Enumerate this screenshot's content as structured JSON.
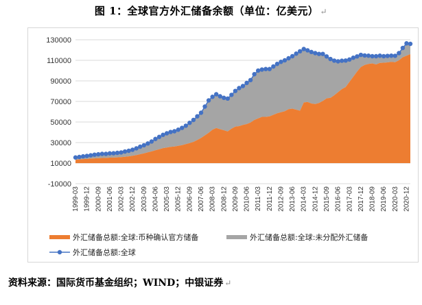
{
  "title": "图 1：全球官方外汇储备余额（单位：亿美元）",
  "source": "资料来源：国际货币基金组织；WIND；中银证券",
  "colors": {
    "allocated": "#ED7D31",
    "unallocated": "#A5A5A5",
    "total_line": "#4472C4",
    "grid": "#d9d9d9"
  },
  "chart_data": {
    "type": "area",
    "xlabel": "",
    "ylabel": "",
    "ylim": [
      -10000,
      130000
    ],
    "yticks": [
      -10000,
      10000,
      30000,
      50000,
      70000,
      90000,
      110000,
      130000
    ],
    "x_tick_labels": [
      "1999-03",
      "1999-12",
      "2000-09",
      "2001-06",
      "2002-03",
      "2002-12",
      "2003-09",
      "2004-06",
      "2005-03",
      "2005-12",
      "2006-09",
      "2007-06",
      "2008-03",
      "2008-12",
      "2009-09",
      "2010-06",
      "2011-03",
      "2011-12",
      "2012-09",
      "2013-06",
      "2014-03",
      "2014-12",
      "2015-09",
      "2016-06",
      "2017-03",
      "2017-12",
      "2018-09",
      "2019-06",
      "2020-03",
      "2020-12"
    ],
    "legend_position": "bottom",
    "x": [
      "1999-03",
      "1999-06",
      "1999-09",
      "1999-12",
      "2000-03",
      "2000-06",
      "2000-09",
      "2000-12",
      "2001-03",
      "2001-06",
      "2001-09",
      "2001-12",
      "2002-03",
      "2002-06",
      "2002-09",
      "2002-12",
      "2003-03",
      "2003-06",
      "2003-09",
      "2003-12",
      "2004-03",
      "2004-06",
      "2004-09",
      "2004-12",
      "2005-03",
      "2005-06",
      "2005-09",
      "2005-12",
      "2006-03",
      "2006-06",
      "2006-09",
      "2006-12",
      "2007-03",
      "2007-06",
      "2007-09",
      "2007-12",
      "2008-03",
      "2008-06",
      "2008-09",
      "2008-12",
      "2009-03",
      "2009-06",
      "2009-09",
      "2009-12",
      "2010-03",
      "2010-06",
      "2010-09",
      "2010-12",
      "2011-03",
      "2011-06",
      "2011-09",
      "2011-12",
      "2012-03",
      "2012-06",
      "2012-09",
      "2012-12",
      "2013-03",
      "2013-06",
      "2013-09",
      "2013-12",
      "2014-03",
      "2014-06",
      "2014-09",
      "2014-12",
      "2015-03",
      "2015-06",
      "2015-09",
      "2015-12",
      "2016-03",
      "2016-06",
      "2016-09",
      "2016-12",
      "2017-03",
      "2017-06",
      "2017-09",
      "2017-12",
      "2018-03",
      "2018-06",
      "2018-09",
      "2018-12",
      "2019-03",
      "2019-06",
      "2019-09",
      "2019-12",
      "2020-03",
      "2020-06",
      "2020-09",
      "2020-12",
      "2021-03"
    ],
    "series": [
      {
        "name": "外汇储备总额:全球:币种确认官方储备",
        "kind": "area",
        "values": [
          13200,
          13600,
          13900,
          14100,
          14400,
          14600,
          14800,
          15000,
          15100,
          15300,
          15400,
          15600,
          15800,
          16200,
          16600,
          17200,
          17800,
          18700,
          19500,
          20500,
          21400,
          22500,
          23500,
          24600,
          25200,
          25800,
          26200,
          26800,
          27500,
          28500,
          29500,
          30700,
          32500,
          34500,
          37000,
          39500,
          42500,
          44200,
          43000,
          42000,
          40800,
          43500,
          45500,
          46000,
          47200,
          48000,
          49500,
          52000,
          53500,
          55000,
          55000,
          55500,
          57000,
          58500,
          59500,
          60500,
          62500,
          63000,
          62000,
          61000,
          69000,
          69500,
          68000,
          67500,
          68500,
          70500,
          73000,
          73500,
          76000,
          79000,
          82000,
          84000,
          89000,
          94000,
          99000,
          103500,
          105500,
          106500,
          107000,
          106000,
          107500,
          107700,
          108000,
          108500,
          108200,
          110000,
          113000,
          114500,
          116000
        ]
      },
      {
        "name": "外汇储备总额:全球:未分配外汇储备",
        "kind": "area",
        "stack_on": "外汇储备总额:全球:币种确认官方储备",
        "values": [
          2300,
          2400,
          2700,
          2900,
          3200,
          3600,
          3800,
          4000,
          3900,
          4200,
          4200,
          4400,
          4600,
          5100,
          5400,
          5800,
          6600,
          7300,
          7900,
          8600,
          9600,
          11000,
          12000,
          12900,
          13800,
          14500,
          14800,
          15700,
          16800,
          17900,
          19700,
          21300,
          23000,
          24500,
          28000,
          31500,
          32000,
          32800,
          32000,
          31500,
          32000,
          32900,
          34700,
          37000,
          37800,
          40000,
          41300,
          44500,
          46500,
          46000,
          46500,
          46000,
          47000,
          48000,
          49000,
          49500,
          49500,
          51000,
          54500,
          57800,
          52000,
          50200,
          50100,
          49500,
          47700,
          45700,
          40800,
          37800,
          33700,
          30000,
          27600,
          25800,
          21800,
          18500,
          14800,
          11800,
          9200,
          8000,
          7000,
          8000,
          7000,
          6300,
          6300,
          6000,
          6200,
          7000,
          9000,
          12000,
          10000
        ]
      },
      {
        "name": "外汇储备总额:全球",
        "kind": "line",
        "values": [
          15500,
          16000,
          16600,
          17000,
          17600,
          18200,
          18600,
          19000,
          19000,
          19500,
          19600,
          20000,
          20400,
          21300,
          22000,
          23000,
          24400,
          26000,
          27400,
          29100,
          31000,
          33500,
          35500,
          37500,
          39000,
          40300,
          41000,
          42500,
          44300,
          46400,
          49200,
          52000,
          55500,
          59000,
          65000,
          71000,
          74500,
          77000,
          75000,
          73500,
          72800,
          76400,
          80200,
          83000,
          85000,
          88000,
          90800,
          96500,
          100000,
          101000,
          101500,
          101500,
          104000,
          106500,
          108500,
          110000,
          112000,
          114000,
          116500,
          118800,
          121000,
          119700,
          118100,
          117000,
          116200,
          116200,
          113800,
          111300,
          109700,
          109000,
          109600,
          109800,
          110800,
          112500,
          113800,
          115300,
          114700,
          114500,
          114000,
          114000,
          114500,
          114000,
          114300,
          114500,
          114400,
          117000,
          122000,
          126500,
          126000
        ]
      }
    ]
  }
}
